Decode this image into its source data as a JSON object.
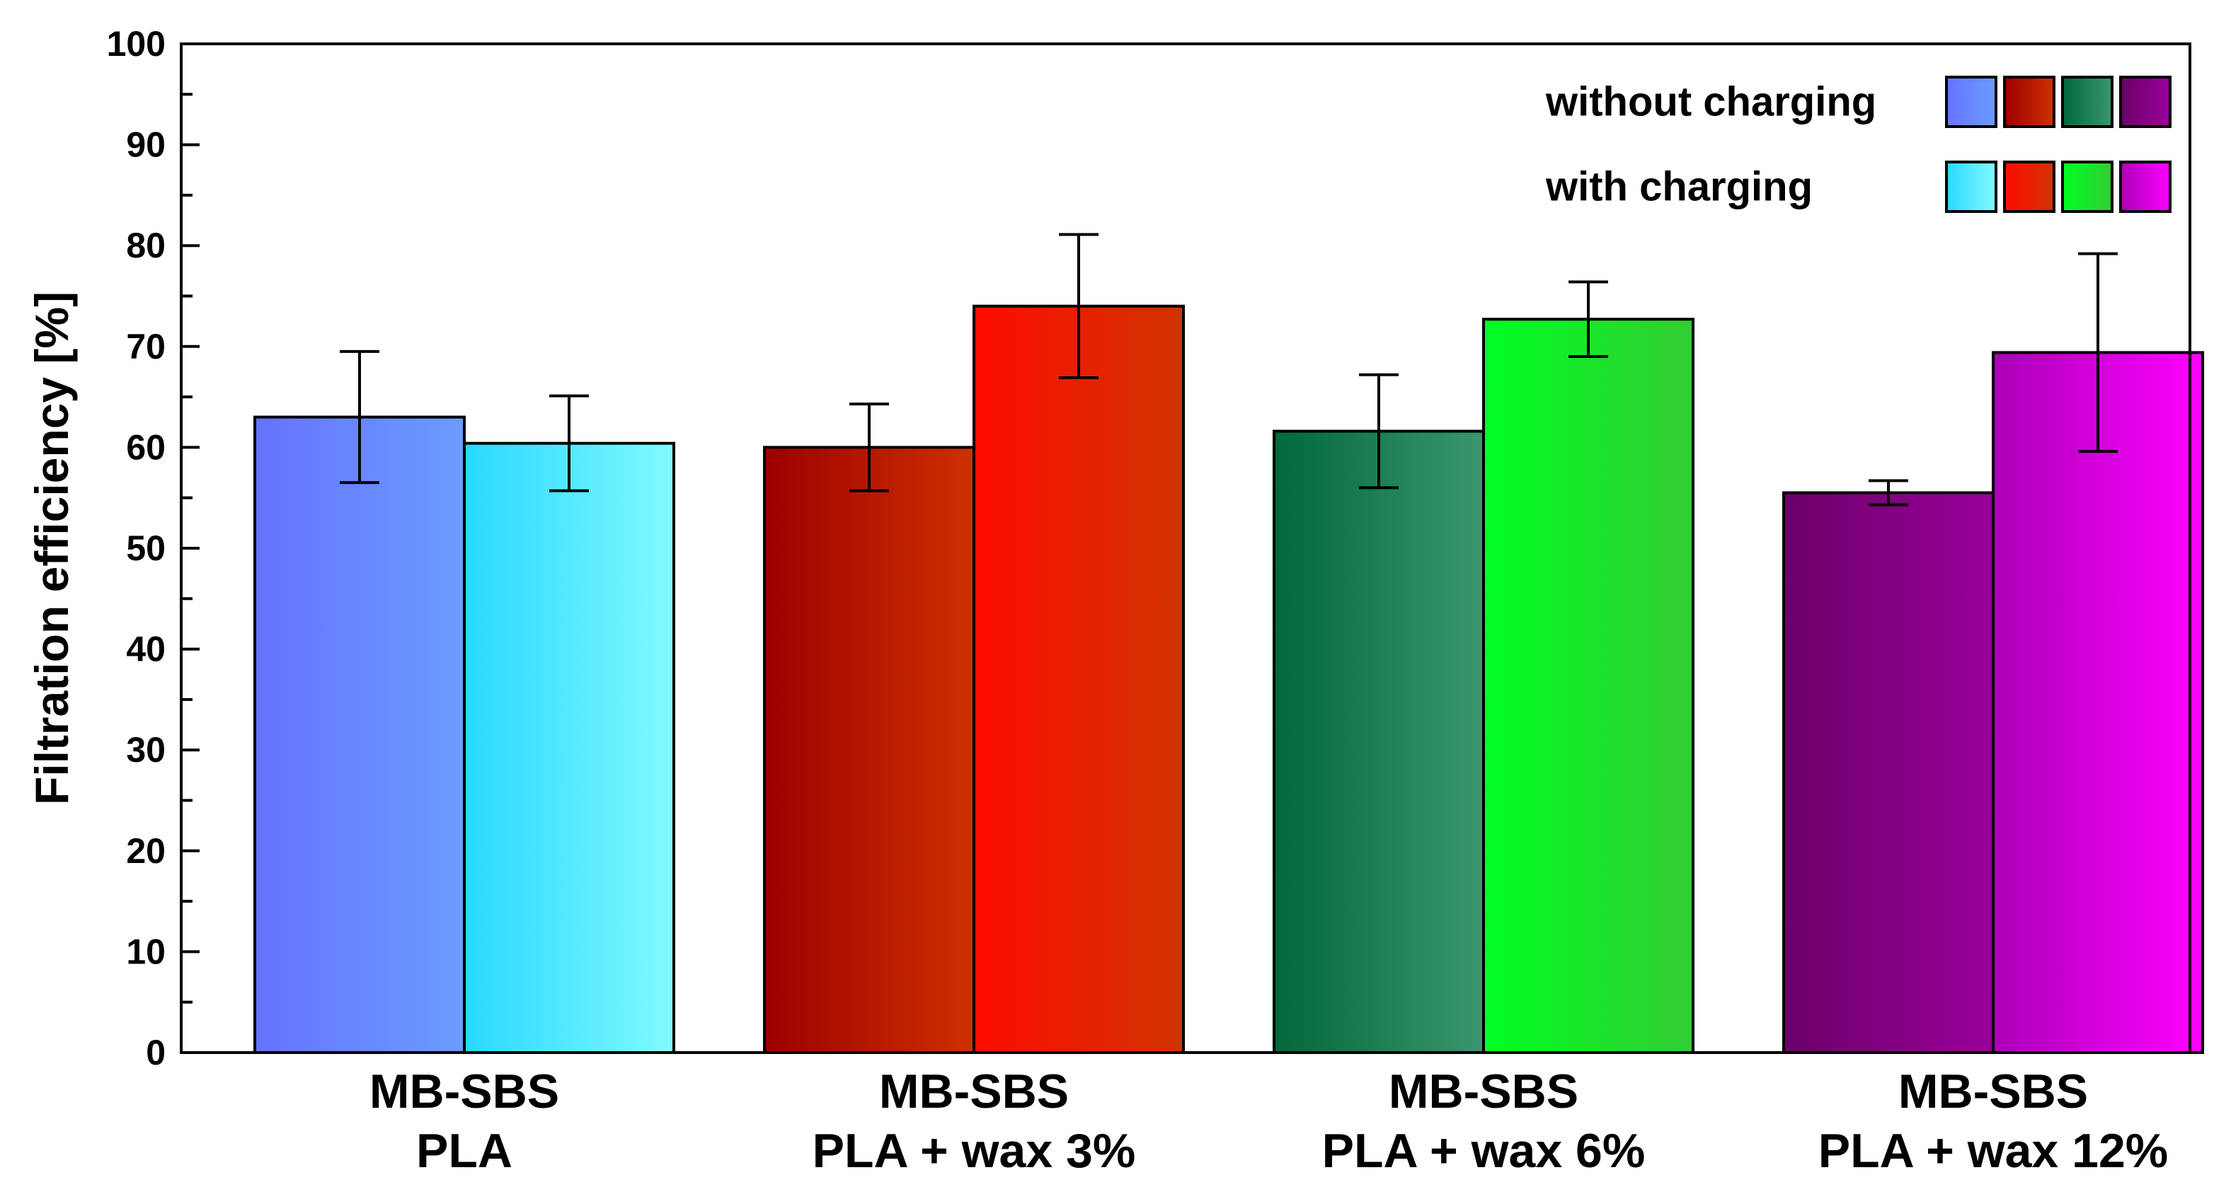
{
  "chart_data": {
    "type": "bar",
    "title": "",
    "xlabel": "",
    "ylabel": "Filtration efficiency [%]",
    "ylim": [
      0,
      100
    ],
    "yticks": [
      0,
      10,
      20,
      30,
      40,
      50,
      60,
      70,
      80,
      90,
      100
    ],
    "grid": false,
    "legend_position": "top-right",
    "categories": [
      {
        "line1": "MB-SBS",
        "line2": "PLA"
      },
      {
        "line1": "MB-SBS",
        "line2": "PLA + wax 3%"
      },
      {
        "line1": "MB-SBS",
        "line2": "PLA + wax 6%"
      },
      {
        "line1": "MB-SBS",
        "line2": "PLA + wax 12%"
      }
    ],
    "series": [
      {
        "name": "without charging",
        "values": [
          63.0,
          60.0,
          61.6,
          55.5
        ],
        "errors": [
          6.5,
          4.3,
          5.6,
          1.2
        ],
        "colors": [
          [
            "#6673ff",
            "#6a9cff"
          ],
          [
            "#9b0000",
            "#cf3000"
          ],
          [
            "#00683a",
            "#3a966e"
          ],
          [
            "#6b0068",
            "#99009a"
          ]
        ]
      },
      {
        "name": "with charging",
        "values": [
          60.4,
          74.0,
          72.7,
          69.4
        ],
        "errors": [
          4.7,
          7.1,
          3.7,
          9.8
        ],
        "colors": [
          [
            "#28d8ff",
            "#82faff"
          ],
          [
            "#ff0c00",
            "#cf3300"
          ],
          [
            "#00ff22",
            "#33cc33"
          ],
          [
            "#aa00b8",
            "#ff00ff"
          ]
        ]
      }
    ]
  }
}
